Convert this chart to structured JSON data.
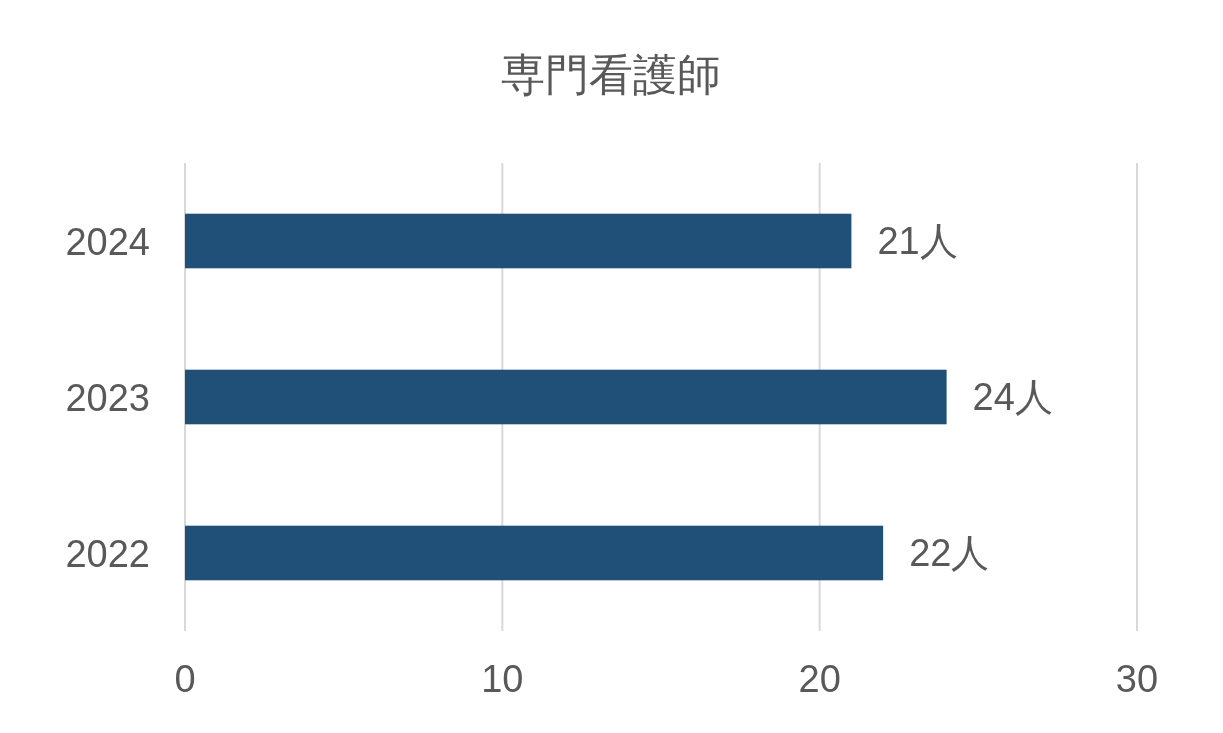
{
  "chart_data": {
    "type": "bar",
    "orientation": "horizontal",
    "title": "専門看護師",
    "categories": [
      "2024",
      "2023",
      "2022"
    ],
    "values": [
      21,
      24,
      22
    ],
    "value_labels": [
      "21人",
      "24人",
      "22人"
    ],
    "color": "#204f77",
    "xlim": [
      0,
      30
    ],
    "xticks": [
      0,
      10,
      20,
      30
    ],
    "grid": "x"
  }
}
